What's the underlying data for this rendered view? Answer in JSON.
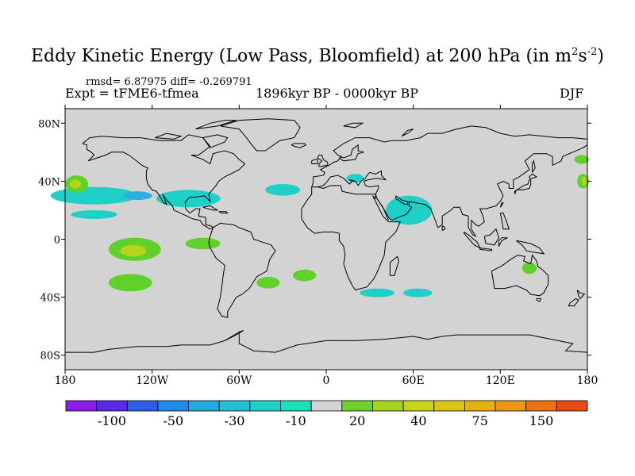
{
  "title": {
    "prefix": "Eddy Kinetic Energy (Low Pass, Bloomfield) at 200 hPa (in m",
    "sup1": "2",
    "mid": "s",
    "sup2": "-2",
    "suffix": ")"
  },
  "stats": "rmsd= 6.87975 diff= -0.269791",
  "experiment": "Expt = tFME6-tfmea",
  "period": "1896kyr BP - 0000kyr BP",
  "season": "DJF",
  "map": {
    "projection": "cylindrical equidistant",
    "lon_range": [
      -180,
      180
    ],
    "lat_range": [
      -90,
      90
    ],
    "land_fill": "#d3d3d3",
    "y_tick_labels": [
      {
        "lat": 80,
        "label": "80N"
      },
      {
        "lat": 40,
        "label": "40N"
      },
      {
        "lat": 0,
        "label": "0"
      },
      {
        "lat": -40,
        "label": "40S"
      },
      {
        "lat": -80,
        "label": "80S"
      }
    ],
    "x_tick_labels": [
      {
        "lon": -180,
        "label": "180"
      },
      {
        "lon": -120,
        "label": "120W"
      },
      {
        "lon": -60,
        "label": "60W"
      },
      {
        "lon": 0,
        "label": "0"
      },
      {
        "lon": 60,
        "label": "60E"
      },
      {
        "lon": 120,
        "label": "120E"
      },
      {
        "lon": 180,
        "label": "180"
      }
    ],
    "anomaly_regions": [
      {
        "name": "north-pacific-cyan-band",
        "lon": -160,
        "lat": 30,
        "rlon": 30,
        "rlat": 6,
        "color": "#1fd0c8"
      },
      {
        "name": "north-pacific-blue-core",
        "lon": -130,
        "lat": 30,
        "rlon": 10,
        "rlat": 3,
        "color": "#2cb0e0"
      },
      {
        "name": "us-cyan-band",
        "lon": -95,
        "lat": 28,
        "rlon": 22,
        "rlat": 6,
        "color": "#1fd0c8"
      },
      {
        "name": "atlantic-cyan-patch",
        "lon": -30,
        "lat": 34,
        "rlon": 12,
        "rlat": 4,
        "color": "#1fd0c8"
      },
      {
        "name": "west-pacific-green-40n",
        "lon": -172,
        "lat": 38,
        "rlon": 8,
        "rlat": 6,
        "color": "#5fd12a"
      },
      {
        "name": "west-pacific-yellow-40n",
        "lon": -173,
        "lat": 38,
        "rlon": 4,
        "rlat": 3,
        "color": "#b8d41a"
      },
      {
        "name": "subtropical-pacific-cyan",
        "lon": -160,
        "lat": 17,
        "rlon": 16,
        "rlat": 3,
        "color": "#1fd0c8"
      },
      {
        "name": "tropical-pacific-green",
        "lon": -132,
        "lat": -7,
        "rlon": 18,
        "rlat": 8,
        "color": "#5fd12a"
      },
      {
        "name": "tropical-pacific-yellow",
        "lon": -133,
        "lat": -8,
        "rlon": 9,
        "rlat": 4,
        "color": "#b8d41a"
      },
      {
        "name": "south-pacific-green",
        "lon": -135,
        "lat": -30,
        "rlon": 15,
        "rlat": 6,
        "color": "#5fd12a"
      },
      {
        "name": "southeast-pacific-green",
        "lon": -85,
        "lat": -3,
        "rlon": 12,
        "rlat": 4,
        "color": "#5fd12a"
      },
      {
        "name": "south-america-east-green",
        "lon": -40,
        "lat": -30,
        "rlon": 8,
        "rlat": 4,
        "color": "#5fd12a"
      },
      {
        "name": "south-atlantic-green",
        "lon": -15,
        "lat": -25,
        "rlon": 8,
        "rlat": 4,
        "color": "#5fd12a"
      },
      {
        "name": "arabia-cyan",
        "lon": 57,
        "lat": 20,
        "rlon": 16,
        "rlat": 10,
        "color": "#1fd0c8"
      },
      {
        "name": "europe-cyan",
        "lon": 20,
        "lat": 42,
        "rlon": 6,
        "rlat": 3,
        "color": "#1fd0c8"
      },
      {
        "name": "southern-ocean-cyan-1",
        "lon": 35,
        "lat": -37,
        "rlon": 12,
        "rlat": 3,
        "color": "#1fd0c8"
      },
      {
        "name": "southern-ocean-cyan-2",
        "lon": 63,
        "lat": -37,
        "rlon": 10,
        "rlat": 3,
        "color": "#1fd0c8"
      },
      {
        "name": "australia-green",
        "lon": 140,
        "lat": -20,
        "rlon": 5,
        "rlat": 4,
        "color": "#5fd12a"
      },
      {
        "name": "east-pacific-green-40n",
        "lon": 177,
        "lat": 40,
        "rlon": 4,
        "rlat": 5,
        "color": "#5fd12a"
      },
      {
        "name": "east-pacific-yellow-40n",
        "lon": 178,
        "lat": 40,
        "rlon": 2,
        "rlat": 3,
        "color": "#b8d41a"
      },
      {
        "name": "northwest-pacific-green",
        "lon": 176,
        "lat": 55,
        "rlon": 5,
        "rlat": 3,
        "color": "#5fd12a"
      }
    ]
  },
  "colorbar": {
    "colors": [
      "#8a1ee8",
      "#5a28e8",
      "#2d5ee8",
      "#1e8ce8",
      "#22aae0",
      "#22bfd8",
      "#1fd0c8",
      "#1ee0b8",
      "#d3d3d3",
      "#6ed22a",
      "#a6d41e",
      "#c8d41a",
      "#dcc814",
      "#e6b210",
      "#ec9614",
      "#ec7214",
      "#e84a14"
    ],
    "labels": [
      {
        "index": 1,
        "text": "-100"
      },
      {
        "index": 3,
        "text": "-50"
      },
      {
        "index": 5,
        "text": "-30"
      },
      {
        "index": 7,
        "text": "-10"
      },
      {
        "index": 9,
        "text": "20"
      },
      {
        "index": 11,
        "text": "40"
      },
      {
        "index": 13,
        "text": "75"
      },
      {
        "index": 15,
        "text": "150"
      }
    ]
  }
}
